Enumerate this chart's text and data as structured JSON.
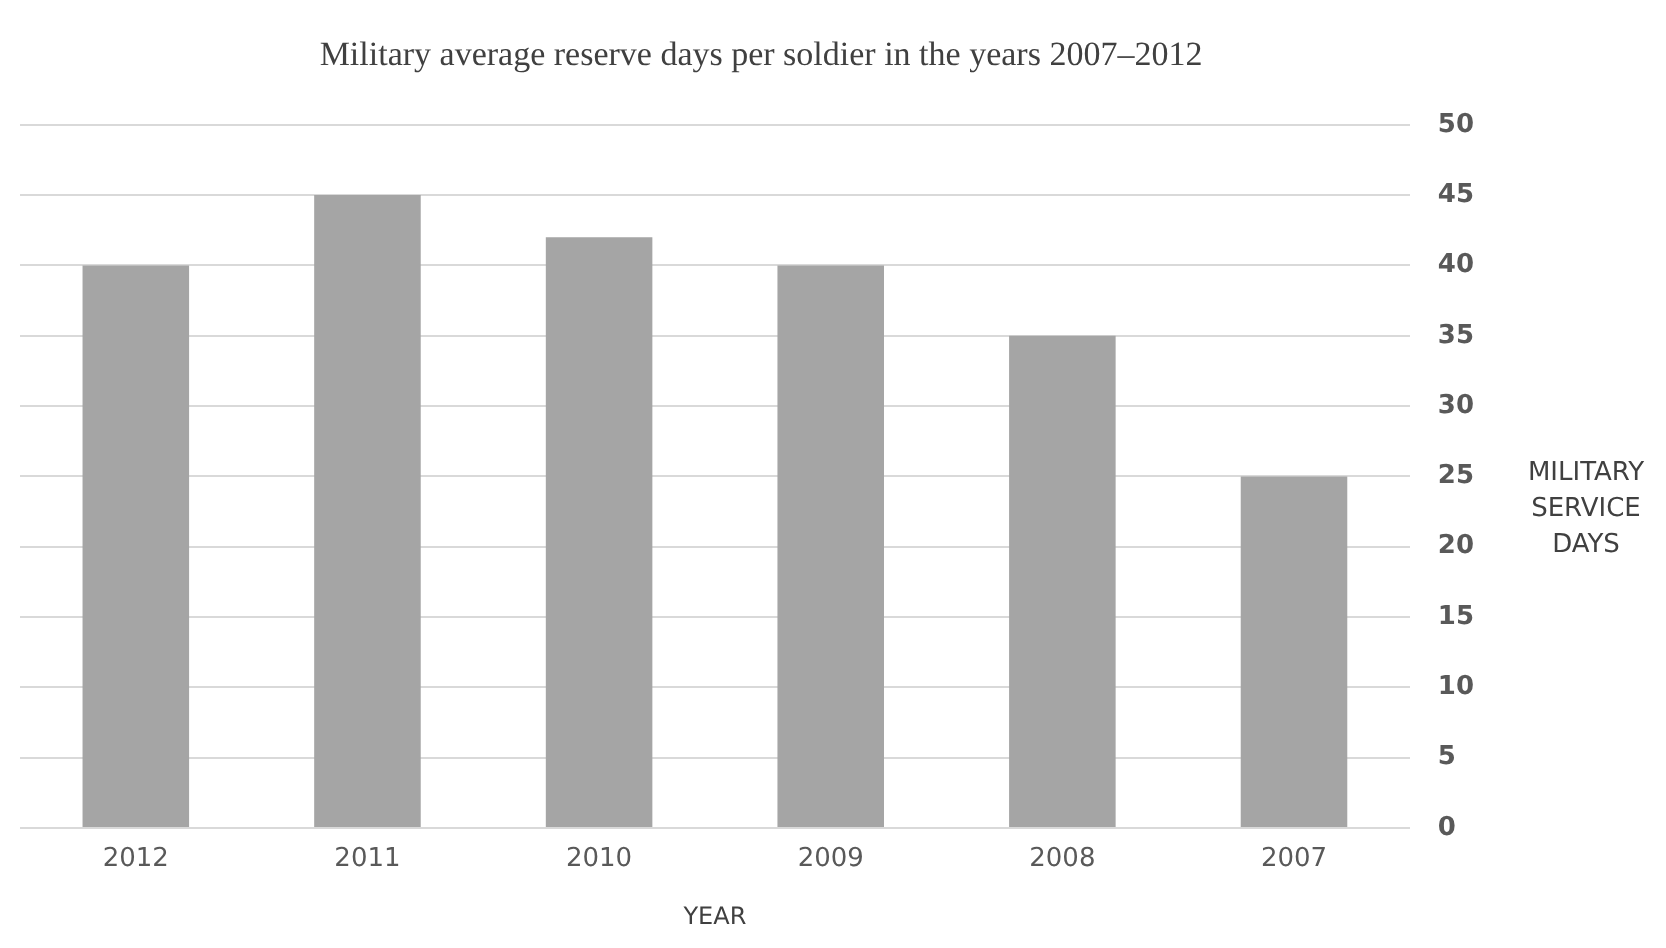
{
  "chart_data": {
    "type": "bar",
    "title": "Military average reserve days per soldier in the years 2007–2012",
    "xlabel": "YEAR",
    "ylabel": "MILITARY SERVICE DAYS",
    "categories": [
      "2012",
      "2011",
      "2010",
      "2009",
      "2008",
      "2007"
    ],
    "values": [
      40,
      45,
      42,
      40,
      35,
      25
    ],
    "color": "#a5a5a5",
    "ylim": [
      0,
      50
    ],
    "yticks": [
      0,
      5,
      10,
      15,
      20,
      25,
      30,
      35,
      40,
      45,
      50
    ],
    "grid": "y",
    "legend": false
  }
}
